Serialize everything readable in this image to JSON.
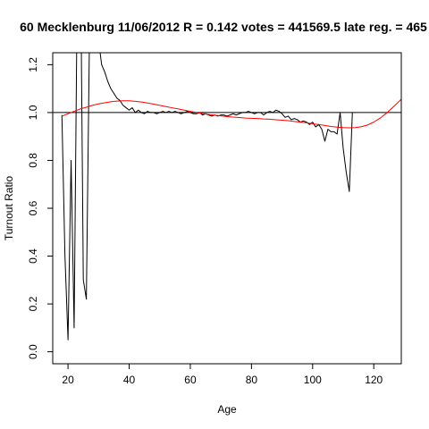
{
  "chart_data": {
    "type": "line",
    "title": "60 Mecklenburg 11/06/2012 R = 0.142 votes = 441569.5 late reg. = 465",
    "xlabel": "Age",
    "ylabel": "Turnout Ratio",
    "xlim": [
      15,
      129
    ],
    "ylim": [
      -0.05,
      1.25
    ],
    "xticks": [
      20,
      40,
      60,
      80,
      100,
      120
    ],
    "yticks": [
      0.0,
      0.2,
      0.4,
      0.6,
      0.8,
      1.0,
      1.2
    ],
    "reference_line": {
      "y": 1.0,
      "color": "#000000"
    },
    "series": [
      {
        "color": "#000000",
        "points": [
          [
            18,
            0.99
          ],
          [
            19,
            0.4
          ],
          [
            20,
            0.05
          ],
          [
            21,
            0.8
          ],
          [
            22,
            0.1
          ],
          [
            23,
            1.5
          ],
          [
            24,
            1.8
          ],
          [
            25,
            0.3
          ],
          [
            26,
            0.22
          ],
          [
            27,
            1.3
          ],
          [
            28,
            2.0
          ],
          [
            29,
            1.6
          ],
          [
            30,
            1.3
          ],
          [
            31,
            1.2
          ],
          [
            32,
            1.17
          ],
          [
            33,
            1.13
          ],
          [
            34,
            1.1
          ],
          [
            35,
            1.08
          ],
          [
            36,
            1.06
          ],
          [
            37,
            1.05
          ],
          [
            38,
            1.03
          ],
          [
            39,
            1.02
          ],
          [
            40,
            1.01
          ],
          [
            41,
            1.02
          ],
          [
            42,
            1.0
          ],
          [
            43,
            1.01
          ],
          [
            44,
            1.0
          ],
          [
            45,
            0.995
          ],
          [
            46,
            1.005
          ],
          [
            47,
            1.0
          ],
          [
            48,
            1.0
          ],
          [
            49,
            0.995
          ],
          [
            50,
            1.0
          ],
          [
            51,
            1.005
          ],
          [
            52,
            1.0
          ],
          [
            53,
            1.005
          ],
          [
            54,
            1.0
          ],
          [
            55,
            1.005
          ],
          [
            56,
            1.0
          ],
          [
            57,
            0.995
          ],
          [
            58,
            1.0
          ],
          [
            59,
            1.005
          ],
          [
            60,
            1.0
          ],
          [
            61,
            0.995
          ],
          [
            62,
            0.995
          ],
          [
            63,
            1.0
          ],
          [
            64,
            0.99
          ],
          [
            65,
            0.995
          ],
          [
            66,
            0.99
          ],
          [
            67,
            0.985
          ],
          [
            68,
            0.99
          ],
          [
            69,
            0.985
          ],
          [
            70,
            0.99
          ],
          [
            71,
            0.99
          ],
          [
            72,
            0.985
          ],
          [
            73,
            0.99
          ],
          [
            74,
            0.995
          ],
          [
            75,
            0.99
          ],
          [
            76,
            0.995
          ],
          [
            77,
            1.0
          ],
          [
            78,
            1.0
          ],
          [
            79,
            1.005
          ],
          [
            80,
            1.0
          ],
          [
            81,
            0.995
          ],
          [
            82,
            1.0
          ],
          [
            83,
            1.0
          ],
          [
            84,
            0.99
          ],
          [
            85,
            1.0
          ],
          [
            86,
            1.005
          ],
          [
            87,
            1.0
          ],
          [
            88,
            1.01
          ],
          [
            89,
            1.005
          ],
          [
            90,
            0.995
          ],
          [
            91,
            0.98
          ],
          [
            92,
            0.985
          ],
          [
            93,
            0.97
          ],
          [
            94,
            0.975
          ],
          [
            95,
            0.97
          ],
          [
            96,
            0.96
          ],
          [
            97,
            0.965
          ],
          [
            98,
            0.96
          ],
          [
            99,
            0.95
          ],
          [
            100,
            0.96
          ],
          [
            101,
            0.94
          ],
          [
            102,
            0.95
          ],
          [
            103,
            0.93
          ],
          [
            104,
            0.88
          ],
          [
            105,
            0.93
          ],
          [
            106,
            0.92
          ],
          [
            107,
            0.92
          ],
          [
            108,
            0.91
          ],
          [
            109,
            1.0
          ],
          [
            110,
            0.85
          ],
          [
            111,
            0.75
          ],
          [
            112,
            0.67
          ],
          [
            113,
            1.0
          ]
        ]
      },
      {
        "color": "#ff0000",
        "points": [
          [
            18,
            0.985
          ],
          [
            20,
            0.995
          ],
          [
            22,
            1.005
          ],
          [
            24,
            1.015
          ],
          [
            26,
            1.022
          ],
          [
            28,
            1.03
          ],
          [
            30,
            1.036
          ],
          [
            32,
            1.041
          ],
          [
            34,
            1.045
          ],
          [
            36,
            1.048
          ],
          [
            38,
            1.049
          ],
          [
            40,
            1.049
          ],
          [
            42,
            1.047
          ],
          [
            44,
            1.044
          ],
          [
            46,
            1.04
          ],
          [
            48,
            1.035
          ],
          [
            50,
            1.03
          ],
          [
            52,
            1.025
          ],
          [
            54,
            1.02
          ],
          [
            56,
            1.015
          ],
          [
            58,
            1.01
          ],
          [
            60,
            1.005
          ],
          [
            62,
            1.0
          ],
          [
            64,
            0.996
          ],
          [
            66,
            0.992
          ],
          [
            68,
            0.989
          ],
          [
            70,
            0.986
          ],
          [
            72,
            0.983
          ],
          [
            74,
            0.981
          ],
          [
            76,
            0.979
          ],
          [
            78,
            0.977
          ],
          [
            80,
            0.976
          ],
          [
            82,
            0.975
          ],
          [
            84,
            0.973
          ],
          [
            86,
            0.972
          ],
          [
            88,
            0.97
          ],
          [
            90,
            0.968
          ],
          [
            92,
            0.966
          ],
          [
            94,
            0.963
          ],
          [
            96,
            0.96
          ],
          [
            98,
            0.957
          ],
          [
            100,
            0.953
          ],
          [
            102,
            0.95
          ],
          [
            104,
            0.946
          ],
          [
            106,
            0.942
          ],
          [
            108,
            0.939
          ],
          [
            110,
            0.937
          ],
          [
            112,
            0.936
          ],
          [
            114,
            0.937
          ],
          [
            116,
            0.941
          ],
          [
            118,
            0.948
          ],
          [
            120,
            0.96
          ],
          [
            122,
            0.976
          ],
          [
            124,
            0.996
          ],
          [
            126,
            1.019
          ],
          [
            128,
            1.043
          ],
          [
            129,
            1.056
          ]
        ]
      }
    ],
    "grid": false,
    "legend": "none"
  }
}
